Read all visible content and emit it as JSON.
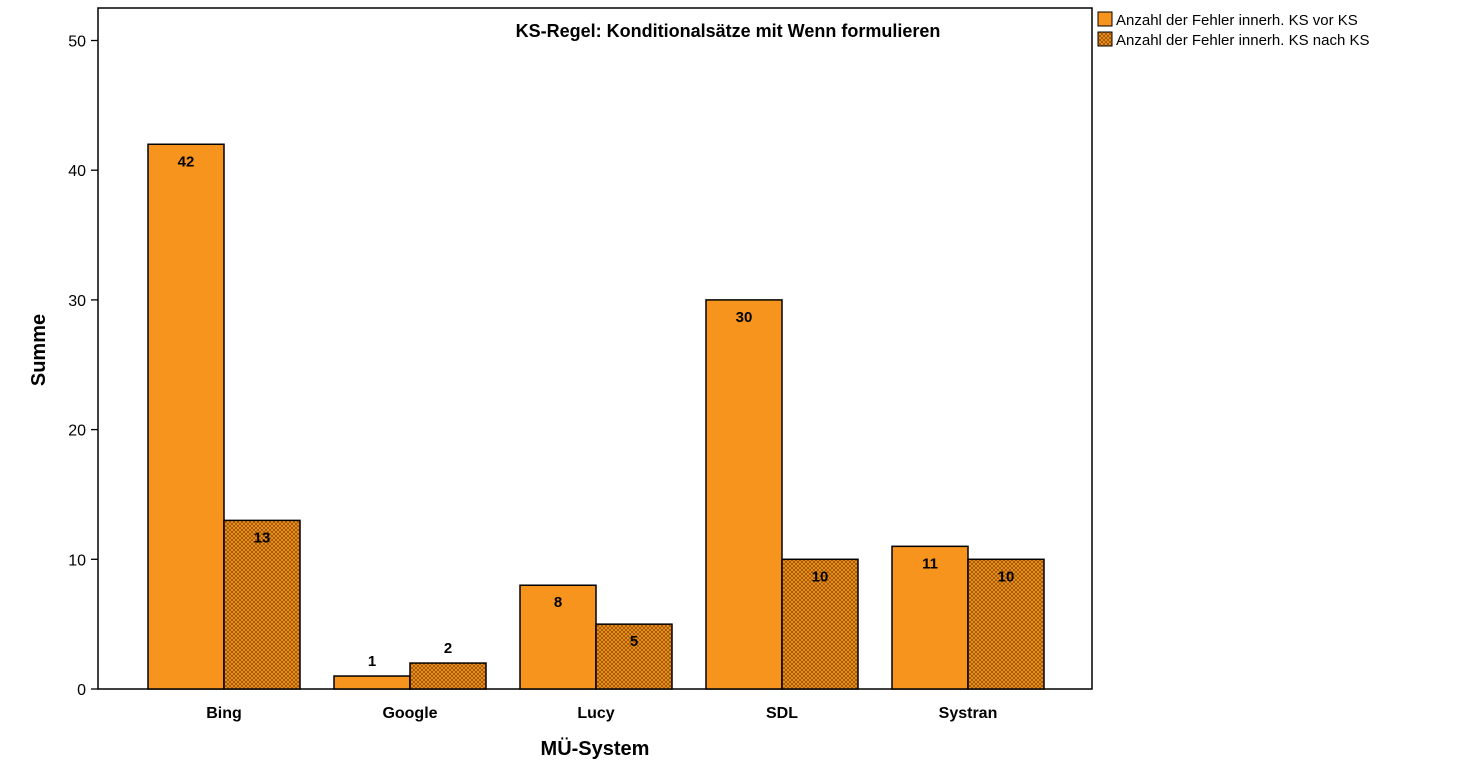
{
  "chart_data": {
    "type": "bar",
    "title": "KS-Regel: Konditionalsätze mit Wenn formulieren",
    "xlabel": "MÜ-System",
    "ylabel": "Summe",
    "categories": [
      "Bing",
      "Google",
      "Lucy",
      "SDL",
      "Systran"
    ],
    "series": [
      {
        "name": "Anzahl der Fehler innerh. KS vor KS",
        "values": [
          42,
          1,
          8,
          30,
          11
        ],
        "color": "#F7941D",
        "pattern": "solid"
      },
      {
        "name": "Anzahl der Fehler innerh. KS nach KS",
        "values": [
          13,
          2,
          5,
          10,
          10
        ],
        "color": "#F7941D",
        "pattern": "crosshatch"
      }
    ],
    "ylim": [
      0,
      52
    ],
    "yticks": [
      0,
      10,
      20,
      30,
      40,
      50
    ],
    "grid": false,
    "legend_position": "right-top-outside"
  }
}
